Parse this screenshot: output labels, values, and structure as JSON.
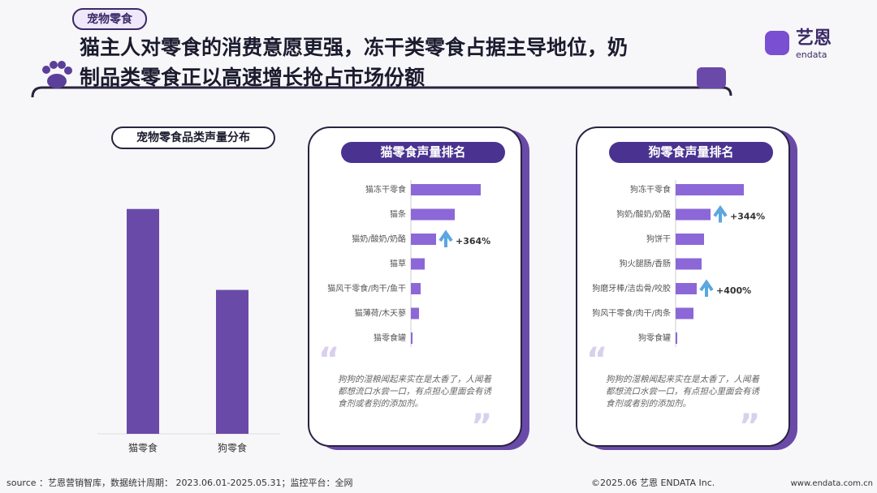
{
  "header": {
    "tag": "宠物零食",
    "title_lines": [
      "猫主人对零食的消费意愿更强，冻干类零食占据主导地位，奶",
      "制品类零食正以高速增长抢占市场份额"
    ],
    "logo": "艺恩",
    "logo_sub": "endata"
  },
  "chart_data": [
    {
      "type": "bar",
      "title": "宠物零食品类声量分布",
      "categories": [
        "猫零食",
        "狗零食"
      ],
      "values": [
        100,
        64
      ],
      "ylim": [
        0,
        110
      ],
      "color": "#6a4aa8"
    },
    {
      "type": "barh",
      "title": "猫零食声量排名",
      "categories": [
        "猫冻干零食",
        "猫条",
        "猫奶/酸奶/奶酪",
        "猫草",
        "猫风干零食/肉干/鱼干",
        "猫薄荷/木天蓼",
        "猫零食罐"
      ],
      "values": [
        86,
        54,
        31,
        17,
        12,
        10,
        2
      ],
      "xlim": [
        0,
        100
      ],
      "color": "#8c67d8",
      "annotations": [
        {
          "category": "猫奶/酸奶/奶酪",
          "text": "+364%"
        }
      ],
      "quote": [
        "狗狗的湿粮闻起来实在是太香了，人闻着",
        "都想流口水尝一口，有点担心里面会有诱",
        "食剂或者别的添加剂。"
      ]
    },
    {
      "type": "barh",
      "title": "狗零食声量排名",
      "categories": [
        "狗冻干零食",
        "狗奶/酸奶/奶酪",
        "狗饼干",
        "狗火腿肠/香肠",
        "狗磨牙棒/洁齿骨/咬胶",
        "狗风干零食/肉干/肉条",
        "狗零食罐"
      ],
      "values": [
        84,
        43,
        35,
        32,
        26,
        22,
        2
      ],
      "xlim": [
        0,
        100
      ],
      "color": "#8c67d8",
      "annotations": [
        {
          "category": "狗奶/酸奶/奶酪",
          "text": "+344%"
        },
        {
          "category": "狗磨牙棒/洁齿骨/咬胶",
          "text": "+400%"
        }
      ],
      "quote": [
        "狗狗的湿粮闻起来实在是太香了，人闻着",
        "都想流口水尝一口，有点担心里面会有诱",
        "食剂或者别的添加剂。"
      ]
    }
  ],
  "footer": {
    "source": "source ：艺恩营销智库，数据统计周期： 2023.06.01-2025.05.31；监控平台：全网",
    "copyright": "©2025.06  艺恩 ENDATA Inc.",
    "site": "www.endata.com.cn"
  }
}
